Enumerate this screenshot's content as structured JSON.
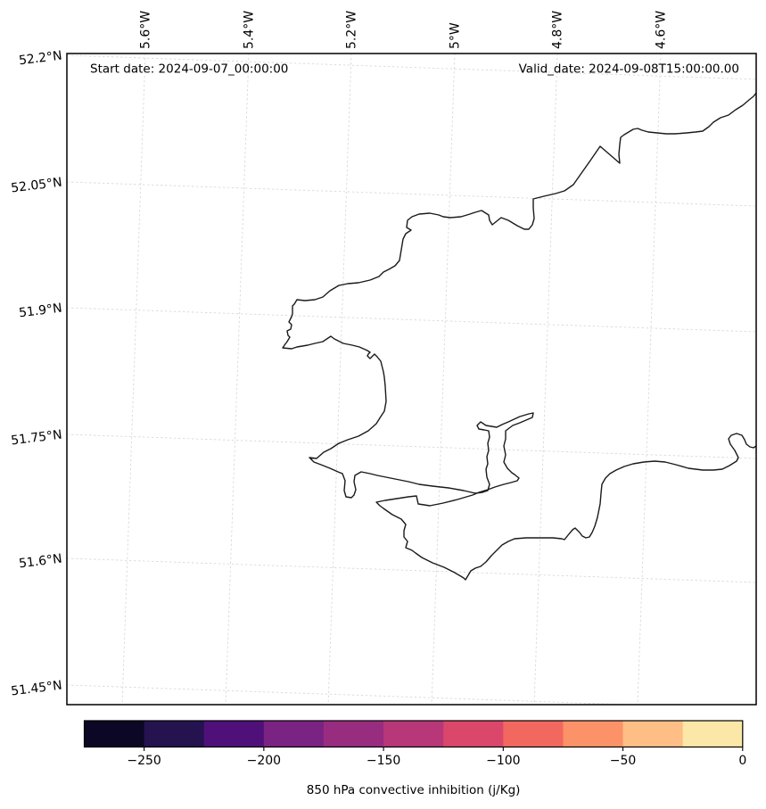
{
  "annotations": {
    "start_date": "Start date: 2024-09-07_00:00:00",
    "valid_date": "Valid_date: 2024-09-08T15:00:00.00"
  },
  "axes": {
    "lon_tick_labels": [
      "5.6°W",
      "5.4°W",
      "5.2°W",
      "5°W",
      "4.8°W",
      "4.6°W"
    ],
    "lat_tick_labels": [
      "52.2°N",
      "52.05°N",
      "51.9°N",
      "51.75°N",
      "51.6°N",
      "51.45°N"
    ]
  },
  "colorbar": {
    "label": "850 hPa convective inhibition (j/Kg)",
    "tick_labels": [
      "−250",
      "−200",
      "−150",
      "−100",
      "−50",
      "0"
    ],
    "tick_values": [
      -250,
      -200,
      -150,
      -100,
      -50,
      0
    ],
    "value_range": [
      -275,
      0
    ],
    "segment_colors": [
      "#0b0724",
      "#251350",
      "#4f1179",
      "#7b2382",
      "#982d80",
      "#b73779",
      "#da476a",
      "#f2685e",
      "#fc9268",
      "#febe85",
      "#fbe7a7"
    ]
  },
  "style_colors": {
    "coastline": "#1a1a1a",
    "gridline": "#d9d9d9",
    "frame": "#000000"
  }
}
